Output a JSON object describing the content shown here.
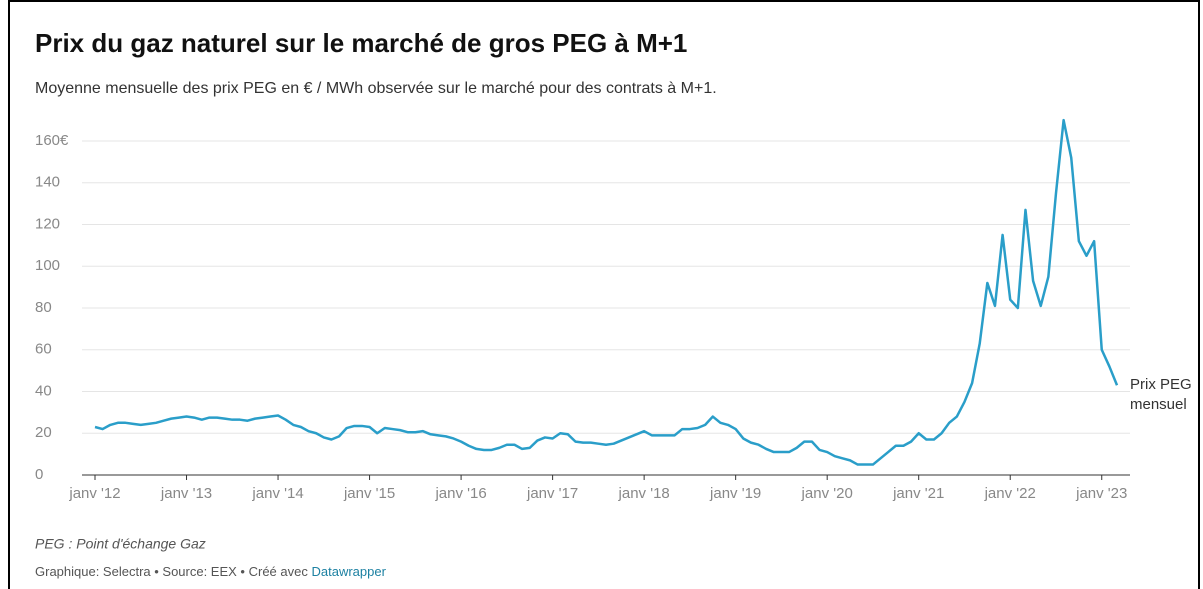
{
  "chart_data": {
    "type": "line",
    "title": "Prix du gaz naturel sur le marché de gros PEG à M+1",
    "subtitle": "Moyenne mensuelle des prix PEG en € / MWh observée sur le marché pour des contrats à M+1.",
    "categories": [
      "janv '12",
      null,
      null,
      null,
      null,
      null,
      null,
      null,
      null,
      null,
      null,
      null,
      "janv '13",
      null,
      null,
      null,
      null,
      null,
      null,
      null,
      null,
      null,
      null,
      null,
      "janv '14",
      null,
      null,
      null,
      null,
      null,
      null,
      null,
      null,
      null,
      null,
      null,
      "janv '15",
      null,
      null,
      null,
      null,
      null,
      null,
      null,
      null,
      null,
      null,
      null,
      "janv '16",
      null,
      null,
      null,
      null,
      null,
      null,
      null,
      null,
      null,
      null,
      null,
      "janv '17",
      null,
      null,
      null,
      null,
      null,
      null,
      null,
      null,
      null,
      null,
      null,
      "janv '18",
      null,
      null,
      null,
      null,
      null,
      null,
      null,
      null,
      null,
      null,
      null,
      "janv '19",
      null,
      null,
      null,
      null,
      null,
      null,
      null,
      null,
      null,
      null,
      null,
      "janv '20",
      null,
      null,
      null,
      null,
      null,
      null,
      null,
      null,
      null,
      null,
      null,
      "janv '21",
      null,
      null,
      null,
      null,
      null,
      null,
      null,
      null,
      null,
      null,
      null,
      "janv '22",
      null,
      null,
      null,
      null,
      null,
      null,
      null,
      null,
      null,
      null,
      null,
      "janv '23",
      null,
      null
    ],
    "series": [
      {
        "name": "Prix PEG mensuel",
        "color": "#2a9ec9",
        "values": [
          23,
          22,
          24,
          25,
          25,
          24.5,
          24,
          24.5,
          25,
          26,
          27,
          27.5,
          28,
          27.5,
          26.5,
          27.5,
          27.5,
          27,
          26.5,
          26.5,
          26,
          27,
          27.5,
          28,
          28.5,
          26.5,
          24,
          23,
          21,
          20,
          18,
          17,
          18.5,
          22.5,
          23.5,
          23.5,
          23,
          20,
          22.5,
          22,
          21.5,
          20.5,
          20.5,
          21,
          19.5,
          19,
          18.5,
          17.5,
          16,
          14,
          12.5,
          12,
          12,
          13,
          14.5,
          14.5,
          12.5,
          13,
          16.5,
          18,
          17.5,
          20,
          19.5,
          16,
          15.5,
          15.5,
          15,
          14.5,
          15,
          16.5,
          18,
          19.5,
          21,
          19,
          19,
          19,
          19,
          22,
          22,
          22.5,
          24,
          28,
          25,
          24,
          22,
          17.5,
          15.5,
          14.5,
          12.5,
          11,
          11,
          11,
          13,
          16,
          16,
          12,
          11,
          9,
          8,
          7,
          5,
          5,
          5,
          8,
          11,
          14,
          14,
          16,
          20,
          17,
          17,
          20,
          25,
          28,
          35,
          44,
          63,
          92,
          81,
          115,
          84,
          80,
          127,
          93,
          81,
          95,
          135,
          170,
          152,
          112,
          105,
          112,
          60,
          52,
          43
        ]
      }
    ],
    "ylim": [
      0,
      170
    ],
    "yticks": [
      0,
      20,
      40,
      60,
      80,
      100,
      120,
      140,
      {
        "value": 160,
        "label": "160€"
      }
    ],
    "grid": true,
    "note": "PEG : Point d'échange Gaz",
    "footer": "Graphique: Selectra • Source: EEX • Créé avec",
    "footer_link": "Datawrapper"
  }
}
